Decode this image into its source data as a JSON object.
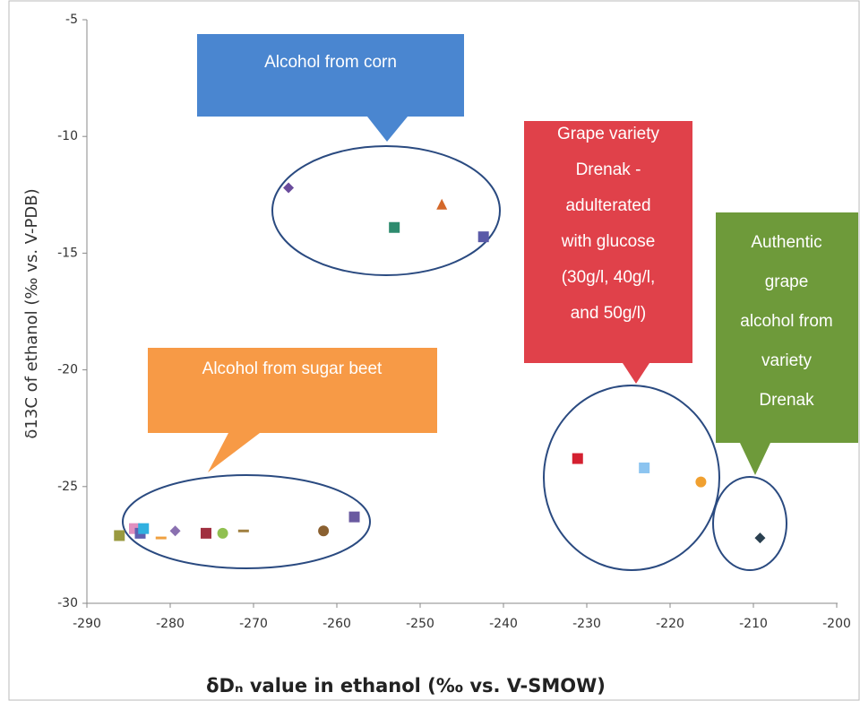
{
  "chart_data": {
    "type": "scatter",
    "xlabel": "δDₙ value in ethanol (‰ vs. V-SMOW)",
    "ylabel": "δ13C  of ethanol (‰ vs. V-PDB)",
    "xlim": [
      -290,
      -200
    ],
    "ylim": [
      -30,
      -5
    ],
    "xticks": [
      -290,
      -280,
      -270,
      -260,
      -250,
      -240,
      -230,
      -220,
      -210,
      -200
    ],
    "yticks": [
      -30,
      -25,
      -20,
      -15,
      -10,
      -5
    ],
    "x": [
      -265.8,
      -253.1,
      -247.4,
      -242.4,
      -231.1,
      -223.1,
      -216.3,
      -209.2,
      -286.1,
      -284.3,
      -283.6,
      -283.2,
      -281.1,
      -279.4,
      -275.7,
      -273.7,
      -271.2,
      -261.6,
      -257.9
    ],
    "values": [
      -12.2,
      -13.9,
      -12.9,
      -14.3,
      -23.8,
      -24.2,
      -24.8,
      -27.2,
      -27.1,
      -26.8,
      -27.0,
      -26.8,
      -27.2,
      -26.9,
      -27.0,
      -27.0,
      -26.9,
      -26.9,
      -26.3
    ],
    "colors": [
      "#6a4c9c",
      "#2e8b6e",
      "#d4682a",
      "#5a5aa8",
      "#d42030",
      "#8cc4f0",
      "#f0a030",
      "#2a4050",
      "#9a9a40",
      "#e090c0",
      "#6060b0",
      "#30b0e0",
      "#f0a040",
      "#8a70b0",
      "#a03040",
      "#90c050",
      "#a08040",
      "#8a6030",
      "#6a5aa0"
    ],
    "markers": [
      "diamond",
      "square",
      "triangle",
      "square",
      "square",
      "square",
      "circle",
      "diamond",
      "square",
      "square",
      "square",
      "square",
      "dash",
      "diamond",
      "square",
      "circle",
      "dash",
      "circle",
      "square"
    ],
    "annotations": [
      {
        "lines": [
          "Alcohol from corn"
        ],
        "color": "#4a86d0"
      },
      {
        "lines": [
          "Alcohol from sugar beet"
        ],
        "color": "#f79a46"
      },
      {
        "lines": [
          "Grape variety",
          "Drenak -",
          "adulterated",
          "with glucose",
          "(30g/l, 40g/l,",
          "and 50g/l)"
        ],
        "color": "#e0414a"
      },
      {
        "lines": [
          "Authentic",
          "grape",
          "alcohol from",
          "variety",
          "Drenak"
        ],
        "color": "#6e9a3a"
      }
    ]
  }
}
